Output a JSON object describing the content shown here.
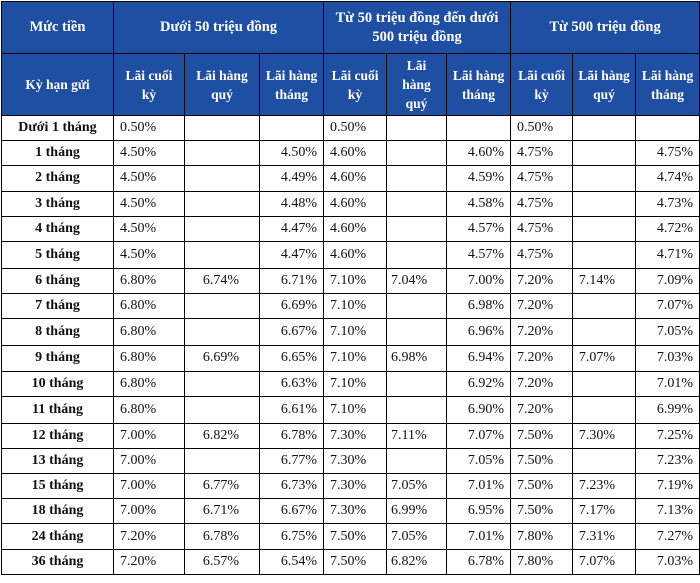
{
  "header": {
    "corner_top": "Mức tiền",
    "corner_bottom": "Kỳ hạn gửi",
    "groups": [
      "Dưới 50 triệu đồng",
      "Từ 50 triệu đồng đến dưới 500 triệu đồng",
      "Từ 500 triệu đồng"
    ],
    "sub": [
      "Lãi cuối kỳ",
      "Lãi hàng quý",
      "Lãi hàng tháng"
    ]
  },
  "rows": [
    {
      "term": "Dưới 1 tháng",
      "v": [
        "0.50%",
        "",
        "",
        "0.50%",
        "",
        "",
        "0.50%",
        "",
        ""
      ]
    },
    {
      "term": "1 tháng",
      "v": [
        "4.50%",
        "",
        "4.50%",
        "4.60%",
        "",
        "4.60%",
        "4.75%",
        "",
        "4.75%"
      ]
    },
    {
      "term": "2 tháng",
      "v": [
        "4.50%",
        "",
        "4.49%",
        "4.60%",
        "",
        "4.59%",
        "4.75%",
        "",
        "4.74%"
      ]
    },
    {
      "term": "3 tháng",
      "v": [
        "4.50%",
        "",
        "4.48%",
        "4.60%",
        "",
        "4.58%",
        "4.75%",
        "",
        "4.73%"
      ]
    },
    {
      "term": "4 tháng",
      "v": [
        "4.50%",
        "",
        "4.47%",
        "4.60%",
        "",
        "4.57%",
        "4.75%",
        "",
        "4.72%"
      ]
    },
    {
      "term": "5 tháng",
      "v": [
        "4.50%",
        "",
        "4.47%",
        "4.60%",
        "",
        "4.57%",
        "4.75%",
        "",
        "4.71%"
      ]
    },
    {
      "term": "6 tháng",
      "v": [
        "6.80%",
        "6.74%",
        "6.71%",
        "7.10%",
        "7.04%",
        "7.00%",
        "7.20%",
        "7.14%",
        "7.09%"
      ]
    },
    {
      "term": "7 tháng",
      "v": [
        "6.80%",
        "",
        "6.69%",
        "7.10%",
        "",
        "6.98%",
        "7.20%",
        "",
        "7.07%"
      ]
    },
    {
      "term": "8 tháng",
      "v": [
        "6.80%",
        "",
        "6.67%",
        "7.10%",
        "",
        "6.96%",
        "7.20%",
        "",
        "7.05%"
      ]
    },
    {
      "term": "9 tháng",
      "v": [
        "6.80%",
        "6.69%",
        "6.65%",
        "7.10%",
        "6.98%",
        "6.94%",
        "7.20%",
        "7.07%",
        "7.03%"
      ]
    },
    {
      "term": "10 tháng",
      "v": [
        "6.80%",
        "",
        "6.63%",
        "7.10%",
        "",
        "6.92%",
        "7.20%",
        "",
        "7.01%"
      ]
    },
    {
      "term": "11 tháng",
      "v": [
        "6.80%",
        "",
        "6.61%",
        "7.10%",
        "",
        "6.90%",
        "7.20%",
        "",
        "6.99%"
      ]
    },
    {
      "term": "12 tháng",
      "v": [
        "7.00%",
        "6.82%",
        "6.78%",
        "7.30%",
        "7.11%",
        "7.07%",
        "7.50%",
        "7.30%",
        "7.25%"
      ]
    },
    {
      "term": "13 tháng",
      "v": [
        "7.00%",
        "",
        "6.77%",
        "7.30%",
        "",
        "7.05%",
        "7.50%",
        "",
        "7.23%"
      ]
    },
    {
      "term": "15 tháng",
      "v": [
        "7.00%",
        "6.77%",
        "6.73%",
        "7.30%",
        "7.05%",
        "7.01%",
        "7.50%",
        "7.23%",
        "7.19%"
      ]
    },
    {
      "term": "18 tháng",
      "v": [
        "7.00%",
        "6.71%",
        "6.67%",
        "7.30%",
        "6.99%",
        "6.95%",
        "7.50%",
        "7.17%",
        "7.13%"
      ]
    },
    {
      "term": "24 tháng",
      "v": [
        "7.20%",
        "6.78%",
        "6.75%",
        "7.50%",
        "7.05%",
        "7.01%",
        "7.80%",
        "7.31%",
        "7.27%"
      ]
    },
    {
      "term": "36 tháng",
      "v": [
        "7.20%",
        "6.57%",
        "6.54%",
        "7.50%",
        "6.82%",
        "6.78%",
        "7.80%",
        "7.07%",
        "7.03%"
      ]
    }
  ],
  "colors": {
    "header_bg": "#1f4fa3",
    "header_text": "#ffffff",
    "border": "#000000"
  }
}
